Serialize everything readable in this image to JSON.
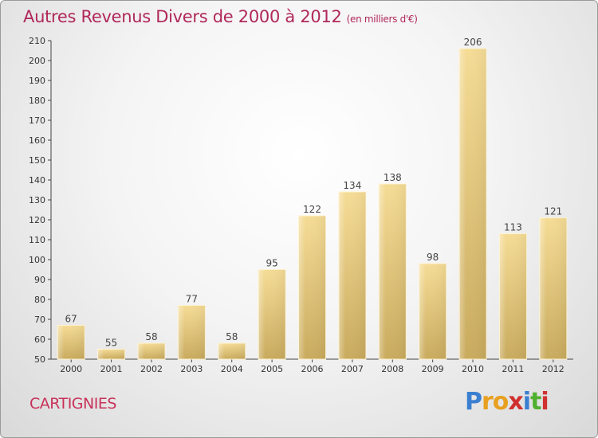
{
  "header": {
    "title": "Autres Revenus Divers de 2000 à 2012",
    "unit": "(en milliers d'€)"
  },
  "footer": {
    "commune": "CARTIGNIES",
    "logo_text": "Proxiti",
    "logo_colors": [
      "#3a7fd0",
      "#e8a020",
      "#e8a020",
      "#d03030",
      "#3a7fd0",
      "#50b030",
      "#d03030"
    ]
  },
  "chart_data": {
    "type": "bar",
    "categories": [
      "2000",
      "2001",
      "2002",
      "2003",
      "2004",
      "2005",
      "2006",
      "2007",
      "2008",
      "2009",
      "2010",
      "2011",
      "2012"
    ],
    "values": [
      67,
      55,
      58,
      77,
      58,
      95,
      122,
      134,
      138,
      98,
      206,
      113,
      121
    ],
    "data_labels": [
      "67",
      "55",
      "58",
      "77",
      "58",
      "95",
      "122",
      "134",
      "138",
      "98",
      "206",
      "113",
      "121"
    ],
    "ylim": [
      50,
      210
    ],
    "yticks": [
      "50",
      "60",
      "70",
      "80",
      "90",
      "100",
      "110",
      "120",
      "130",
      "140",
      "150",
      "160",
      "170",
      "180",
      "190",
      "200",
      "210"
    ],
    "grid": false,
    "bar_color": "#e6c97a"
  }
}
